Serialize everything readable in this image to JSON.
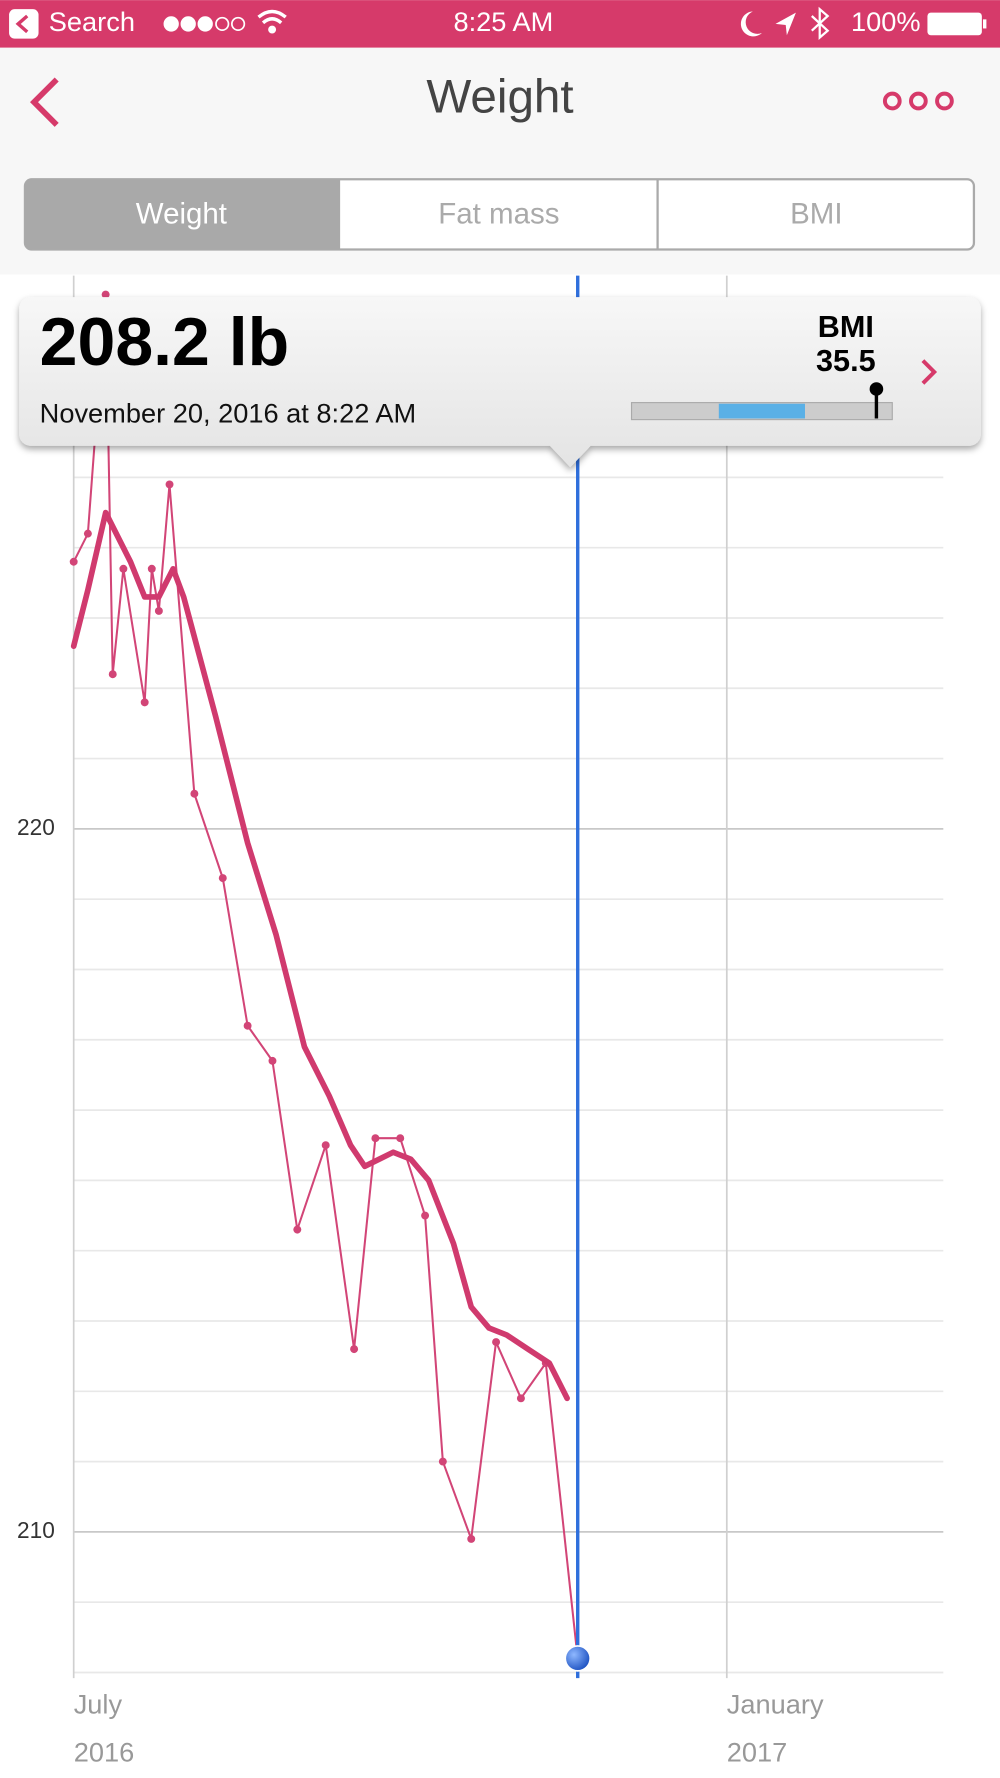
{
  "status_bar": {
    "back_app": "Search",
    "time": "8:25 AM",
    "battery": "100%"
  },
  "header": {
    "title": "Weight"
  },
  "tabs": [
    "Weight",
    "Fat mass",
    "BMI"
  ],
  "tooltip": {
    "weight": "208.2 lb",
    "date": "November 20, 2016 at 8:22 AM",
    "bmi_label": "BMI",
    "bmi_value": "35.5"
  },
  "chart_data": {
    "type": "line",
    "series": [
      {
        "color": "#d24577",
        "markers": true,
        "x": [
          "2016-07-01",
          "2016-07-05",
          "2016-07-10",
          "2016-07-12",
          "2016-07-15",
          "2016-07-21",
          "2016-07-23",
          "2016-07-25",
          "2016-07-28",
          "2016-08-04",
          "2016-08-12",
          "2016-08-19",
          "2016-08-26",
          "2016-09-02",
          "2016-09-10",
          "2016-09-18",
          "2016-09-24",
          "2016-10-01",
          "2016-10-08",
          "2016-10-13",
          "2016-10-21",
          "2016-10-28",
          "2016-11-04",
          "2016-11-11",
          "2016-11-20"
        ],
        "values": [
          223.8,
          224.2,
          227.6,
          222.2,
          223.7,
          221.8,
          223.7,
          223.1,
          224.9,
          220.5,
          219.3,
          217.2,
          216.7,
          214.3,
          215.5,
          212.6,
          215.6,
          215.6,
          214.5,
          211.0,
          209.9,
          212.7,
          211.9,
          212.4,
          208.2
        ]
      },
      {
        "color": "#d03a6e",
        "markers": false,
        "x": [
          "2016-07-01",
          "2016-07-05",
          "2016-07-10",
          "2016-07-14",
          "2016-07-17",
          "2016-07-21",
          "2016-07-25",
          "2016-07-29",
          "2016-08-01",
          "2016-08-10",
          "2016-08-19",
          "2016-08-27",
          "2016-09-04",
          "2016-09-11",
          "2016-09-17",
          "2016-09-21",
          "2016-09-29",
          "2016-10-04",
          "2016-10-09",
          "2016-10-16",
          "2016-10-21",
          "2016-10-26",
          "2016-10-31",
          "2016-11-06",
          "2016-11-12",
          "2016-11-17"
        ],
        "values": [
          222.6,
          223.4,
          224.5,
          224.1,
          223.8,
          223.3,
          223.3,
          223.7,
          223.3,
          221.6,
          219.8,
          218.5,
          216.9,
          216.2,
          215.5,
          215.2,
          215.4,
          215.3,
          215.0,
          214.1,
          213.2,
          212.9,
          212.8,
          212.6,
          212.4,
          211.9
        ]
      }
    ],
    "selected_color": "#2f6fdc",
    "xlim": [
      "2016-07-01",
      "2017-03-03"
    ],
    "xticks": [
      {
        "value": "2016-07-01",
        "label": "July"
      },
      {
        "value": "2017-01-01",
        "label": "January"
      }
    ],
    "xtick_years": [
      "2016",
      "2017"
    ],
    "ylim": [
      207.92,
      227.87
    ],
    "yticks": [
      210,
      220
    ],
    "minor_yticks": [
      208,
      209,
      211,
      212,
      213,
      214,
      215,
      216,
      217,
      218,
      219,
      221,
      222,
      223,
      224,
      225,
      226,
      227
    ],
    "grid": true
  }
}
